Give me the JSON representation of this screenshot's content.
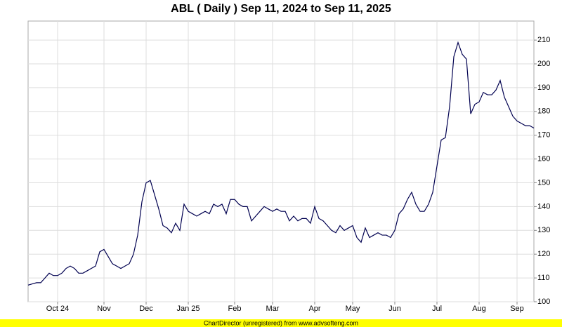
{
  "chart_data": {
    "type": "line",
    "title": "ABL ( Daily ) Sep 11, 2024 to Sep 11, 2025",
    "categories": [
      null,
      null,
      null,
      null,
      null,
      null,
      null,
      "Oct 24",
      null,
      null,
      null,
      null,
      null,
      null,
      null,
      null,
      null,
      null,
      "Nov",
      null,
      null,
      null,
      null,
      null,
      null,
      null,
      null,
      null,
      "Dec",
      null,
      null,
      null,
      null,
      null,
      null,
      null,
      null,
      null,
      "Jan 25",
      null,
      null,
      null,
      null,
      null,
      null,
      null,
      null,
      null,
      null,
      "Feb",
      null,
      null,
      null,
      null,
      null,
      null,
      null,
      null,
      "Mar",
      null,
      null,
      null,
      null,
      null,
      null,
      null,
      null,
      null,
      "Apr",
      null,
      null,
      null,
      null,
      null,
      null,
      null,
      null,
      "May",
      null,
      null,
      null,
      null,
      null,
      null,
      null,
      null,
      null,
      "Jun",
      null,
      null,
      null,
      null,
      null,
      null,
      null,
      null,
      null,
      "Jul",
      null,
      null,
      null,
      null,
      null,
      null,
      null,
      null,
      null,
      "Aug",
      null,
      null,
      null,
      null,
      null,
      null,
      null,
      null,
      "Sep",
      null,
      null,
      null,
      null
    ],
    "series": [
      {
        "color": "#000050",
        "values": [
          107,
          107.5,
          108,
          108,
          110,
          112,
          111,
          111,
          112,
          114,
          115,
          114,
          112,
          112,
          113,
          114,
          115,
          121,
          122,
          119,
          116,
          115,
          114,
          115,
          116,
          120,
          128,
          142,
          150,
          151,
          145,
          139,
          132,
          131,
          129,
          133,
          130,
          141,
          138,
          137,
          136,
          137,
          138,
          137,
          141,
          140,
          141,
          137,
          143,
          143,
          141,
          140,
          140,
          134,
          136,
          138,
          140,
          139,
          138,
          139,
          138,
          138,
          134,
          136,
          134,
          135,
          135,
          133,
          140,
          135,
          134,
          132,
          130,
          129,
          132,
          130,
          131,
          132,
          127,
          125,
          131,
          127,
          128,
          129,
          128,
          128,
          127,
          130,
          137,
          139,
          143,
          146,
          141,
          138,
          138,
          141,
          146,
          157,
          168,
          169,
          182,
          203,
          209,
          204,
          202,
          179,
          183,
          184,
          188,
          187,
          187,
          189,
          193,
          186,
          182,
          178,
          176,
          175,
          174,
          174,
          173
        ]
      }
    ],
    "ylim": [
      100,
      218
    ],
    "yticks": [
      100,
      110,
      120,
      130,
      140,
      150,
      160,
      170,
      180,
      190,
      200,
      210
    ],
    "grid": true
  },
  "footer": "ChartDirector (unregistered) from www.advsofteng.com"
}
